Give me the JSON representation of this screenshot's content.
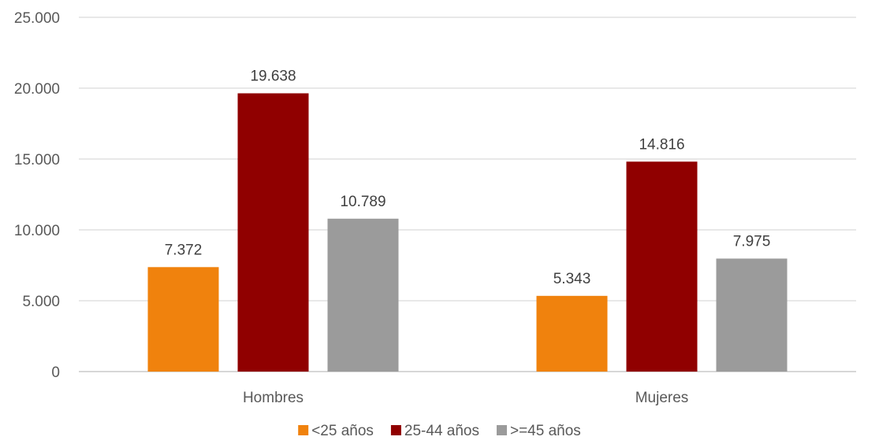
{
  "chart_data": {
    "type": "bar",
    "categories": [
      "Hombres",
      "Mujeres"
    ],
    "series": [
      {
        "name": "<25 años",
        "values": [
          7372,
          5343
        ],
        "labels": [
          "7.372",
          "5.343"
        ],
        "color": "#F0820D"
      },
      {
        "name": "25-44 años",
        "values": [
          19638,
          14816
        ],
        "labels": [
          "19.638",
          "14.816"
        ],
        "color": "#900000"
      },
      {
        "name": ">=45 años",
        "values": [
          10789,
          7975
        ],
        "labels": [
          "10.789",
          "7.975"
        ],
        "color": "#9B9B9B"
      }
    ],
    "yticks": [
      {
        "value": 0,
        "label": "0"
      },
      {
        "value": 5000,
        "label": "5.000"
      },
      {
        "value": 10000,
        "label": "10.000"
      },
      {
        "value": 15000,
        "label": "15.000"
      },
      {
        "value": 20000,
        "label": "20.000"
      },
      {
        "value": 25000,
        "label": "25.000"
      }
    ],
    "ylim": [
      0,
      25000
    ],
    "title": "",
    "xlabel": "",
    "ylabel": "",
    "grid": true,
    "legend_position": "bottom",
    "gridline_color": "#D9D9D9"
  }
}
